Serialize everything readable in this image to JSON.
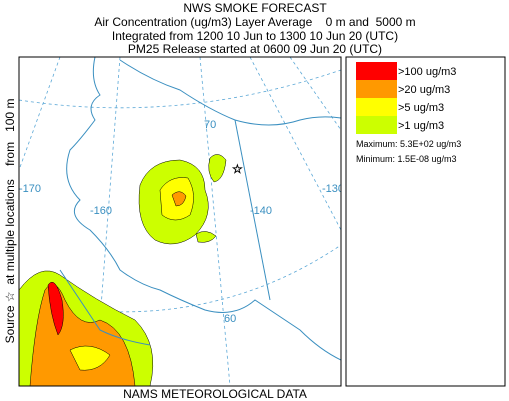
{
  "header": {
    "title": "NWS SMOKE FORECAST",
    "lines": [
      "Air Concentration (ug/m3) Layer Average    0 m and  5000 m",
      "Integrated from 1200 10 Jun to 1300 10 Jun 20 (UTC)",
      "PM25 Release started at 0600 09 Jun 20 (UTC)"
    ]
  },
  "side_label": "Source ☆  at multiple locations    from   100 m",
  "map": {
    "labels": [
      "70",
      "-170",
      "-160",
      "-140",
      "-130",
      "60"
    ]
  },
  "legend": {
    "items": [
      {
        "label": ">100 ug/m3",
        "color": "#ff0000"
      },
      {
        "label": ">20 ug/m3",
        "color": "#ff9900"
      },
      {
        "label": ">5 ug/m3",
        "color": "#ffff00"
      },
      {
        "label": ">1 ug/m3",
        "color": "#ccff00"
      }
    ],
    "maximum": "Maximum: 5.3E+02 ug/m3",
    "minimum": "Minimum: 1.5E-08 ug/m3"
  },
  "footer": "NAMS METEOROLOGICAL DATA"
}
